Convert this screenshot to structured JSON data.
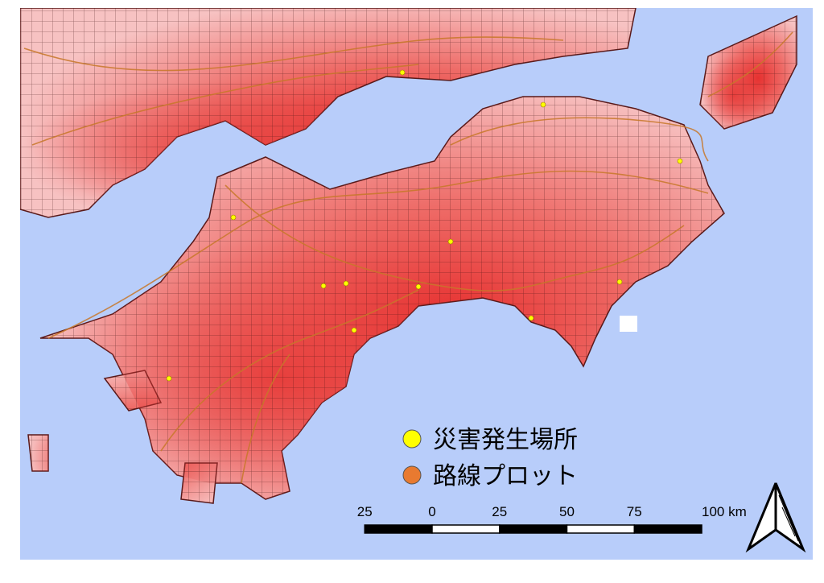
{
  "legend": {
    "items": [
      {
        "label": "災害発生場所",
        "color": "#ffff00"
      },
      {
        "label": "路線プロット",
        "color": "#e87a30"
      }
    ]
  },
  "scale_bar": {
    "ticks": [
      {
        "value": -25,
        "label": "25"
      },
      0,
      25,
      50,
      75,
      {
        "value": 100,
        "label": "100 km"
      }
    ]
  }
}
